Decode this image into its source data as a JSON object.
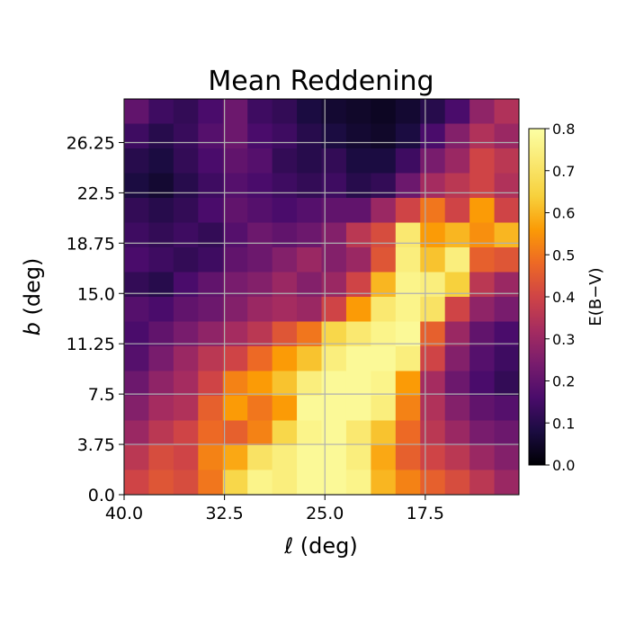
{
  "chart_data": {
    "type": "heatmap",
    "title": "Mean Reddening",
    "xlabel": "ℓ (deg)",
    "ylabel": "b (deg)",
    "xlabel_italic_symbol": "ℓ",
    "xlabel_rest": " (deg)",
    "ylabel_italic_symbol": "b",
    "ylabel_rest": " (deg)",
    "xlim": [
      40.0,
      10.5
    ],
    "ylim": [
      0.0,
      29.5
    ],
    "xticks": [
      40.0,
      32.5,
      25.0,
      17.5
    ],
    "xtick_labels": [
      "40.0",
      "32.5",
      "25.0",
      "17.5"
    ],
    "yticks": [
      0.0,
      3.75,
      7.5,
      11.25,
      15.0,
      18.75,
      22.5,
      26.25
    ],
    "ytick_labels": [
      "0.0",
      "3.75",
      "7.5",
      "11.25",
      "15.0",
      "18.75",
      "22.5",
      "26.25"
    ],
    "grid": true,
    "colormap": "inferno",
    "colorbar": {
      "label": "E(B−V)",
      "range": [
        0.0,
        0.8
      ],
      "ticks": [
        0.0,
        0.1,
        0.2,
        0.3,
        0.4,
        0.5,
        0.6,
        0.7,
        0.8
      ],
      "tick_labels": [
        "0.0",
        "0.1",
        "0.2",
        "0.3",
        "0.4",
        "0.5",
        "0.6",
        "0.7",
        "0.8"
      ]
    },
    "grid_shape": [
      16,
      16
    ],
    "row_order": "top to bottom (b high to low); columns left to right (ℓ high to low)",
    "values": [
      [
        0.2,
        0.14,
        0.12,
        0.16,
        0.22,
        0.14,
        0.12,
        0.08,
        0.06,
        0.05,
        0.04,
        0.06,
        0.1,
        0.16,
        0.28,
        0.34
      ],
      [
        0.14,
        0.1,
        0.13,
        0.18,
        0.22,
        0.16,
        0.14,
        0.1,
        0.08,
        0.06,
        0.05,
        0.08,
        0.16,
        0.26,
        0.34,
        0.3
      ],
      [
        0.1,
        0.08,
        0.12,
        0.16,
        0.2,
        0.18,
        0.12,
        0.1,
        0.12,
        0.08,
        0.08,
        0.14,
        0.24,
        0.3,
        0.4,
        0.36
      ],
      [
        0.08,
        0.06,
        0.1,
        0.14,
        0.18,
        0.16,
        0.14,
        0.12,
        0.14,
        0.1,
        0.12,
        0.22,
        0.32,
        0.36,
        0.4,
        0.34
      ],
      [
        0.12,
        0.1,
        0.12,
        0.16,
        0.2,
        0.18,
        0.16,
        0.18,
        0.2,
        0.2,
        0.3,
        0.4,
        0.5,
        0.4,
        0.56,
        0.4
      ],
      [
        0.14,
        0.12,
        0.14,
        0.12,
        0.18,
        0.22,
        0.2,
        0.22,
        0.26,
        0.36,
        0.42,
        0.72,
        0.56,
        0.6,
        0.54,
        0.6
      ],
      [
        0.16,
        0.14,
        0.12,
        0.14,
        0.2,
        0.22,
        0.26,
        0.3,
        0.26,
        0.3,
        0.44,
        0.74,
        0.62,
        0.74,
        0.46,
        0.44
      ],
      [
        0.12,
        0.1,
        0.16,
        0.2,
        0.24,
        0.26,
        0.3,
        0.26,
        0.3,
        0.4,
        0.6,
        0.76,
        0.74,
        0.64,
        0.36,
        0.3
      ],
      [
        0.18,
        0.16,
        0.2,
        0.22,
        0.26,
        0.3,
        0.32,
        0.3,
        0.4,
        0.56,
        0.72,
        0.76,
        0.7,
        0.4,
        0.28,
        0.24
      ],
      [
        0.16,
        0.2,
        0.24,
        0.28,
        0.32,
        0.36,
        0.44,
        0.5,
        0.66,
        0.72,
        0.76,
        0.78,
        0.46,
        0.3,
        0.2,
        0.16
      ],
      [
        0.18,
        0.24,
        0.3,
        0.36,
        0.4,
        0.48,
        0.56,
        0.62,
        0.74,
        0.78,
        0.78,
        0.74,
        0.4,
        0.26,
        0.18,
        0.14
      ],
      [
        0.22,
        0.28,
        0.32,
        0.4,
        0.52,
        0.56,
        0.62,
        0.74,
        0.78,
        0.78,
        0.76,
        0.56,
        0.32,
        0.22,
        0.16,
        0.12
      ],
      [
        0.26,
        0.32,
        0.34,
        0.46,
        0.56,
        0.5,
        0.56,
        0.78,
        0.78,
        0.78,
        0.74,
        0.52,
        0.34,
        0.26,
        0.2,
        0.18
      ],
      [
        0.3,
        0.36,
        0.4,
        0.48,
        0.46,
        0.52,
        0.66,
        0.76,
        0.78,
        0.72,
        0.62,
        0.48,
        0.36,
        0.3,
        0.24,
        0.22
      ],
      [
        0.36,
        0.42,
        0.4,
        0.52,
        0.58,
        0.7,
        0.74,
        0.78,
        0.78,
        0.74,
        0.58,
        0.46,
        0.4,
        0.36,
        0.3,
        0.26
      ],
      [
        0.4,
        0.44,
        0.42,
        0.5,
        0.66,
        0.76,
        0.74,
        0.78,
        0.78,
        0.76,
        0.6,
        0.52,
        0.46,
        0.42,
        0.36,
        0.3
      ]
    ]
  }
}
